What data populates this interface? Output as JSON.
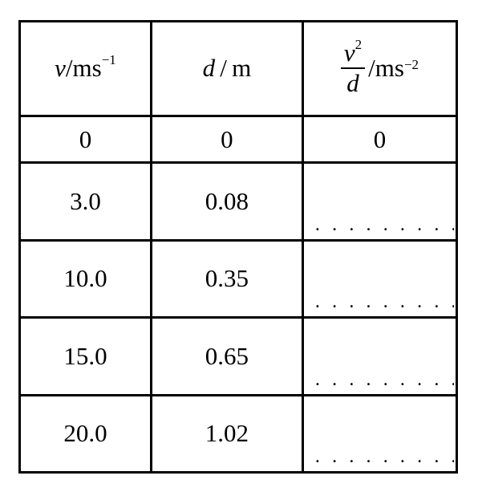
{
  "table": {
    "headers": {
      "col1": {
        "var": "v",
        "unit": "ms",
        "exp": "−1"
      },
      "col2": {
        "var": "d",
        "unit": "m"
      },
      "col3": {
        "num_var": "v",
        "num_exp": "2",
        "den_var": "d",
        "unit": "ms",
        "exp": "−2"
      },
      "slash": "/"
    },
    "rows": [
      {
        "v": "0",
        "d": "0",
        "ratio": "0"
      },
      {
        "v": "3.0",
        "d": "0.08",
        "ratio": ". . . . . . . . . . ."
      },
      {
        "v": "10.0",
        "d": "0.35",
        "ratio": ". . . . . . . . . . ."
      },
      {
        "v": "15.0",
        "d": "0.65",
        "ratio": ". . . . . . . . . . ."
      },
      {
        "v": "20.0",
        "d": "1.02",
        "ratio": ". . . . . . . . . . ."
      }
    ]
  }
}
